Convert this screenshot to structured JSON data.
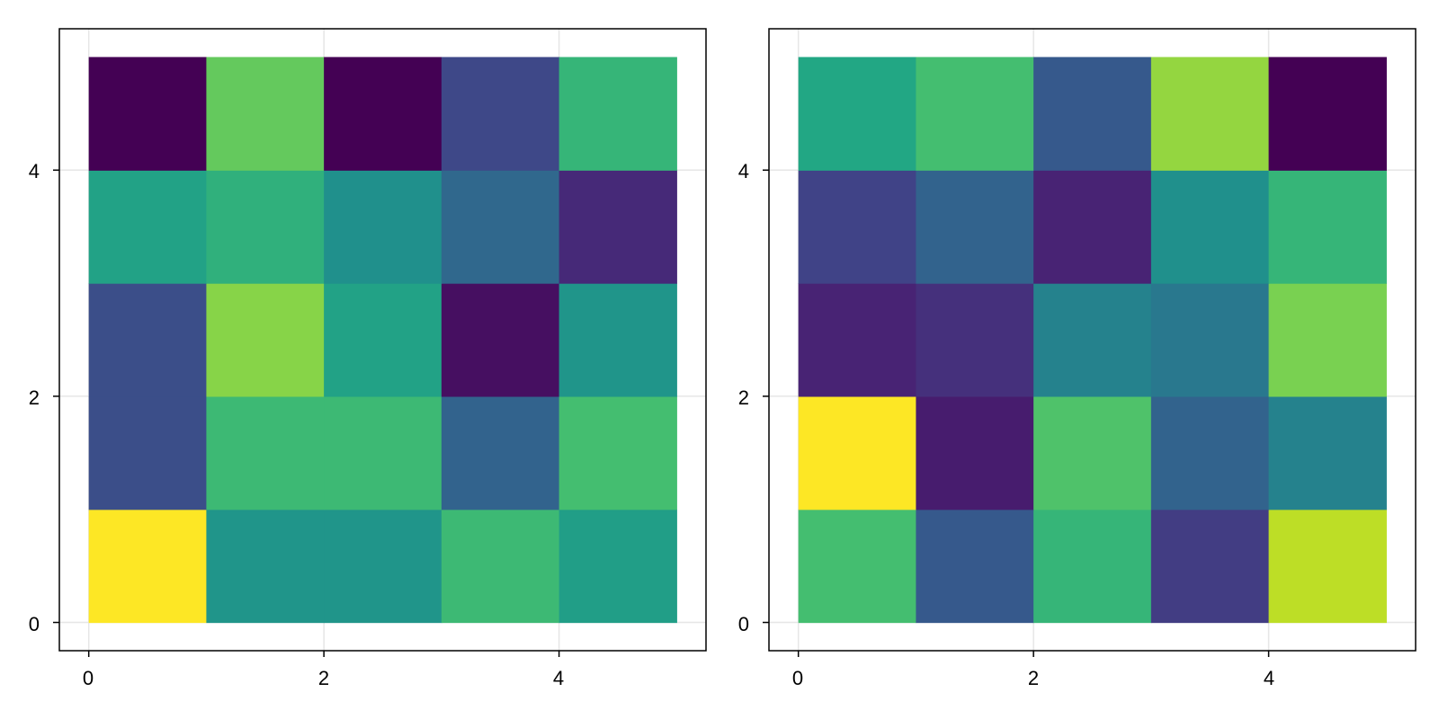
{
  "chart_data": [
    {
      "type": "heatmap",
      "title": "",
      "xlabel": "",
      "ylabel": "",
      "colormap": "viridis",
      "xlim": [
        -0.25,
        5.25
      ],
      "ylim": [
        -0.25,
        5.25
      ],
      "xticks": [
        0,
        2,
        4
      ],
      "yticks": [
        0,
        2,
        4
      ],
      "xtick_labels": [
        "0",
        "2",
        "4"
      ],
      "ytick_labels": [
        "0",
        "2",
        "4"
      ],
      "grid": true,
      "cell_edges_x": [
        0,
        1,
        2,
        3,
        4,
        5
      ],
      "cell_edges_y": [
        0,
        1,
        2,
        3,
        4,
        5
      ],
      "values": [
        [
          1.0,
          0.52,
          0.52,
          0.68,
          0.56
        ],
        [
          0.24,
          0.68,
          0.68,
          0.32,
          0.7
        ],
        [
          0.24,
          0.82,
          0.58,
          0.04,
          0.52
        ],
        [
          0.58,
          0.64,
          0.5,
          0.34,
          0.12
        ],
        [
          0.0,
          0.76,
          0.0,
          0.22,
          0.66
        ]
      ]
    },
    {
      "type": "heatmap",
      "title": "",
      "xlabel": "",
      "ylabel": "",
      "colormap": "viridis",
      "xlim": [
        -0.25,
        5.25
      ],
      "ylim": [
        -0.25,
        5.25
      ],
      "xticks": [
        0,
        2,
        4
      ],
      "yticks": [
        0,
        2,
        4
      ],
      "xtick_labels": [
        "0",
        "2",
        "4"
      ],
      "ytick_labels": [
        "0",
        "2",
        "4"
      ],
      "grid": true,
      "cell_edges_x": [
        0,
        1,
        2,
        3,
        4,
        5
      ],
      "cell_edges_y": [
        0,
        1,
        2,
        3,
        4,
        5
      ],
      "values": [
        [
          0.7,
          0.28,
          0.66,
          0.18,
          0.9
        ],
        [
          1.0,
          0.08,
          0.72,
          0.32,
          0.44
        ],
        [
          0.1,
          0.14,
          0.44,
          0.4,
          0.8
        ],
        [
          0.2,
          0.32,
          0.1,
          0.5,
          0.66
        ],
        [
          0.6,
          0.7,
          0.28,
          0.84,
          0.0
        ]
      ]
    }
  ]
}
